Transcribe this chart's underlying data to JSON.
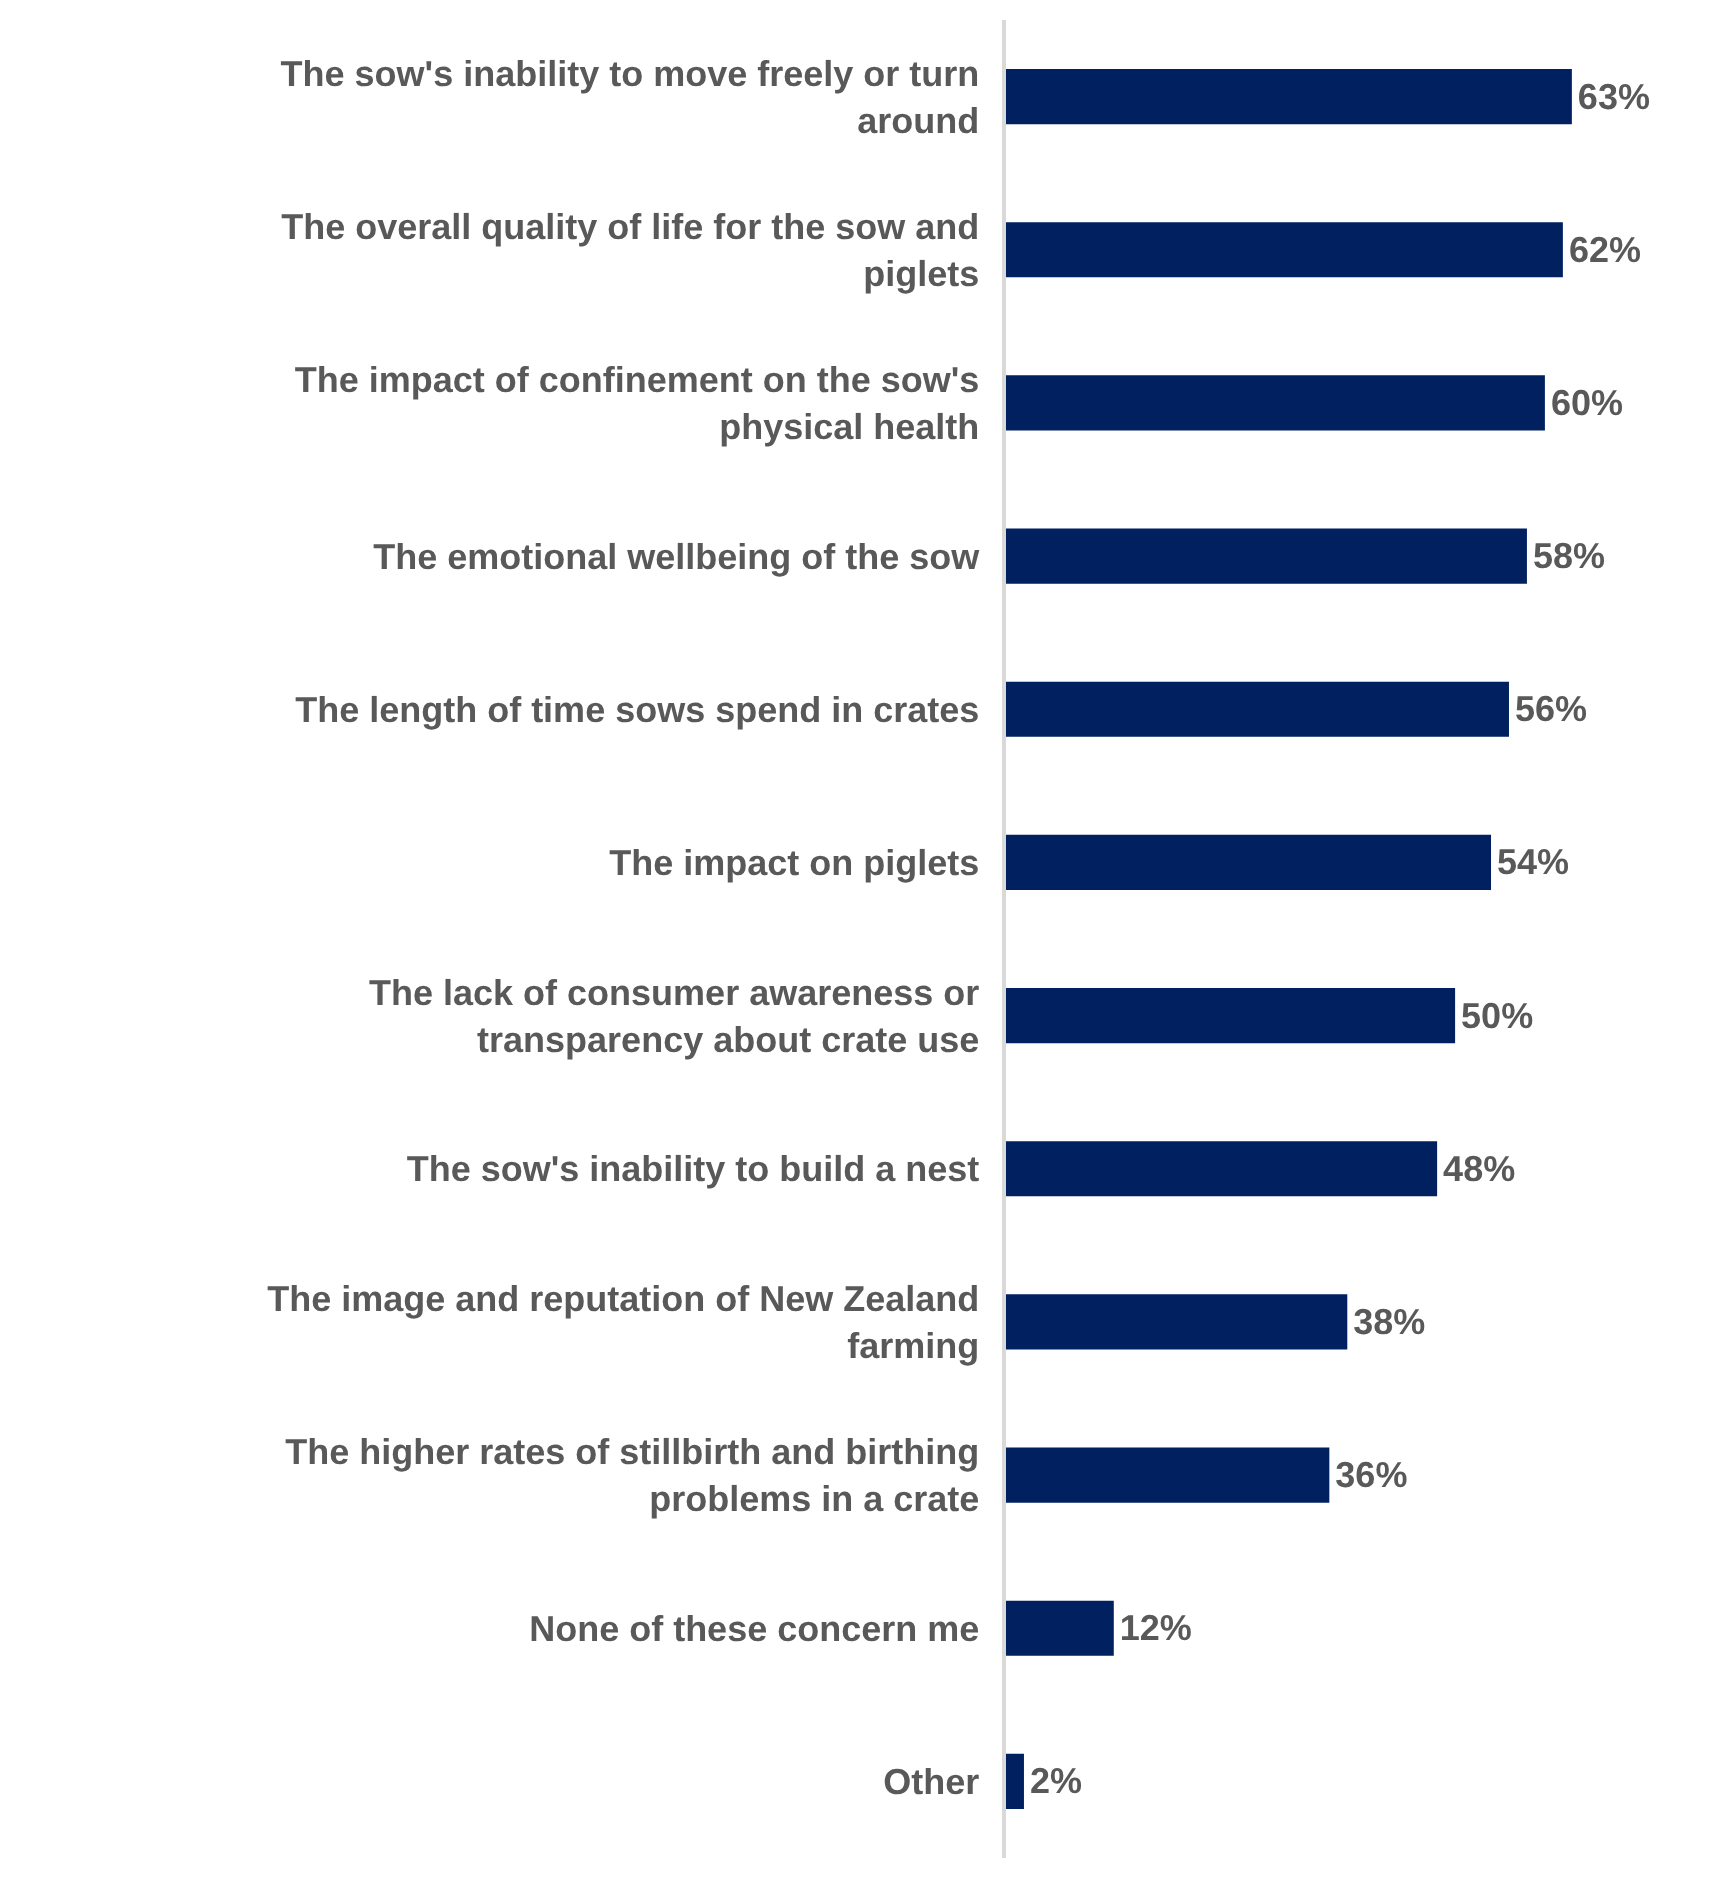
{
  "chart_data": {
    "type": "bar",
    "orientation": "horizontal",
    "categories": [
      "The sow's inability to move freely or turn around",
      "The overall quality of life for the sow and piglets",
      "The impact of confinement on the sow's physical health",
      "The emotional wellbeing of the sow",
      "The length of time sows spend in crates",
      "The impact on piglets",
      "The lack of consumer awareness or transparency about crate use",
      "The sow's inability to build a nest",
      "The image and reputation of New Zealand farming",
      "The higher rates of stillbirth and birthing problems in a crate",
      "None of these concern me",
      "Other"
    ],
    "values": [
      63,
      62,
      60,
      58,
      56,
      54,
      50,
      48,
      38,
      36,
      12,
      2
    ],
    "value_labels": [
      "63%",
      "62%",
      "60%",
      "58%",
      "56%",
      "54%",
      "50%",
      "48%",
      "38%",
      "36%",
      "12%",
      "2%"
    ],
    "color": "#002060",
    "tick_labels": "y",
    "legend": false
  }
}
